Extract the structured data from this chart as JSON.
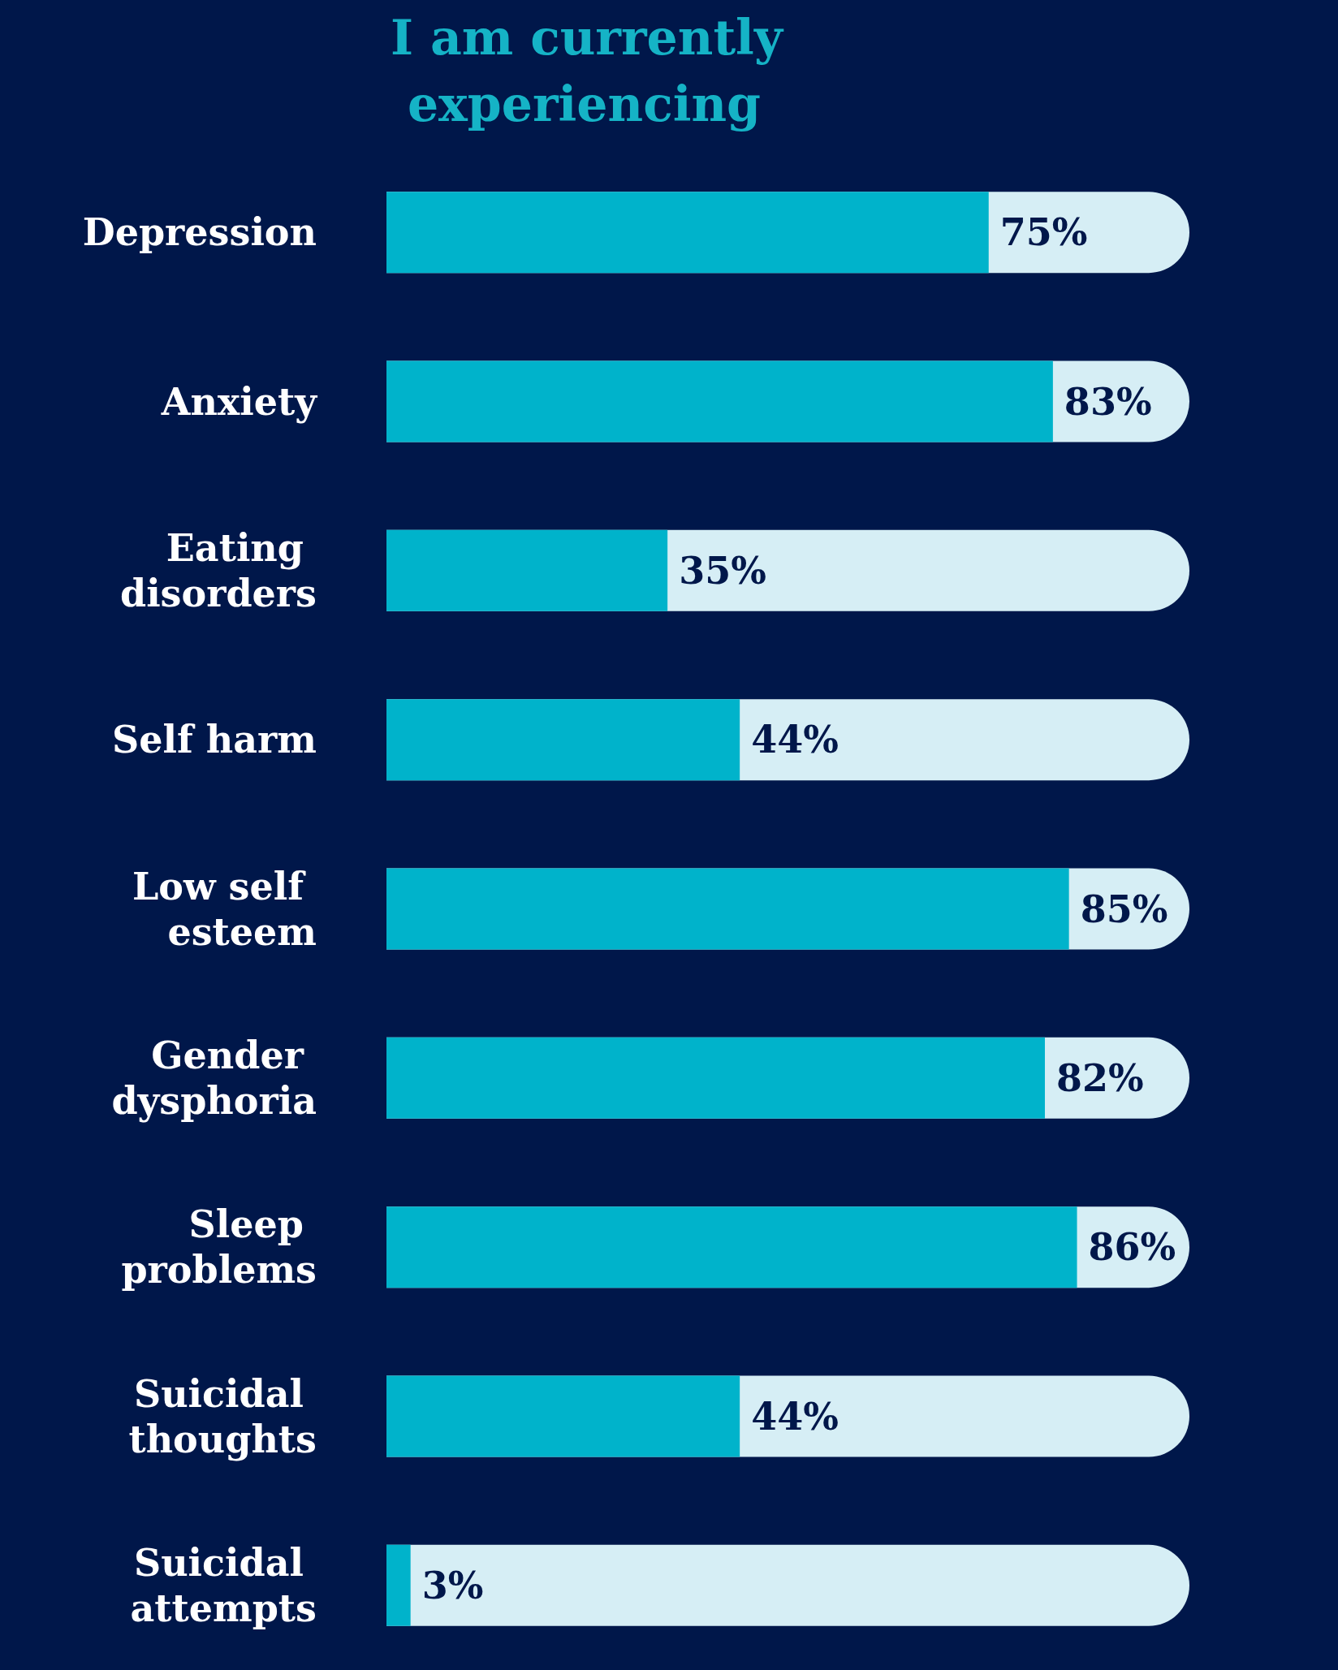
{
  "chart_data": {
    "type": "bar",
    "orientation": "horizontal",
    "title": "I am currently experiencing",
    "categories": [
      "Depression",
      "Anxiety",
      "Eating disorders",
      "Self harm",
      "Low self esteem",
      "Gender dysphoria",
      "Sleep problems",
      "Suicidal thoughts",
      "Suicidal attempts"
    ],
    "values": [
      75,
      83,
      35,
      44,
      85,
      82,
      86,
      44,
      3
    ],
    "value_labels": [
      "75%",
      "83%",
      "35%",
      "44%",
      "85%",
      "82%",
      "86%",
      "44%",
      "3%"
    ],
    "color": "#00b3cb",
    "tick_labels": "y"
  }
}
